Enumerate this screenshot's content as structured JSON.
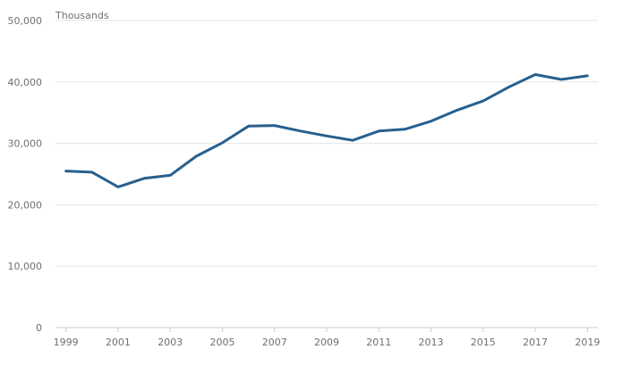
{
  "chart_data": {
    "type": "line",
    "ylabel": "Thousands",
    "ylim": [
      0,
      50000
    ],
    "y_ticks": [
      0,
      10000,
      20000,
      30000,
      40000,
      50000
    ],
    "y_tick_labels": [
      "0",
      "10,000",
      "20,000",
      "30,000",
      "40,000",
      "50,000"
    ],
    "x_ticks": [
      1999,
      2001,
      2003,
      2005,
      2007,
      2009,
      2011,
      2013,
      2015,
      2017,
      2019
    ],
    "x_tick_labels": [
      "1999",
      "2001",
      "2003",
      "2005",
      "2007",
      "2009",
      "2011",
      "2013",
      "2015",
      "2017",
      "2019"
    ],
    "xlim": [
      1999,
      2019
    ],
    "grid": "horizontal",
    "series": [
      {
        "color": "#27608f",
        "x": [
          1999,
          2000,
          2001,
          2002,
          2003,
          2004,
          2005,
          2006,
          2007,
          2008,
          2009,
          2010,
          2011,
          2012,
          2013,
          2014,
          2015,
          2016,
          2017,
          2018,
          2019
        ],
        "values": [
          25500,
          25300,
          22900,
          24300,
          24800,
          27900,
          30100,
          32800,
          32900,
          32000,
          31200,
          30500,
          32000,
          32300,
          33600,
          35400,
          36900,
          39200,
          41200,
          40400,
          41000
        ]
      }
    ]
  }
}
